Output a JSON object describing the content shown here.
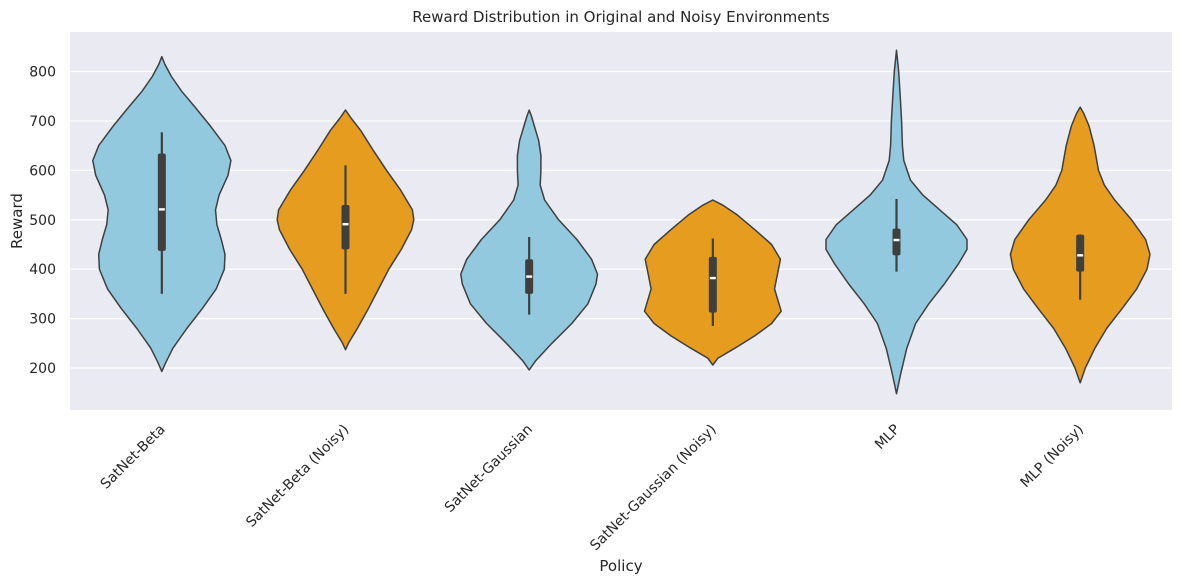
{
  "chart_data": {
    "type": "violin",
    "title": "Reward Distribution in Original and Noisy Environments",
    "xlabel": "Policy",
    "ylabel": "Reward",
    "ylim": [
      115,
      880
    ],
    "yticks": [
      200,
      300,
      400,
      500,
      600,
      700,
      800
    ],
    "grid": true,
    "colors": {
      "original": "#92c9df",
      "noisy": "#e59c1f",
      "background": "#eaeaf2",
      "outline": "#3f3f3f",
      "box": "#3f3f3f",
      "median": "#ffffff"
    },
    "categories": [
      "SatNet-Beta",
      "SatNet-Beta (Noisy)",
      "SatNet-Gaussian",
      "SatNet-Gaussian (Noisy)",
      "MLP",
      "MLP (Noisy)"
    ],
    "violins": [
      {
        "name": "SatNet-Beta",
        "variant": "original",
        "min": 193,
        "max": 830,
        "whisker": [
          350,
          677
        ],
        "q1": 437,
        "median": 521,
        "q3": 634,
        "profile": [
          [
            193,
            0.0
          ],
          [
            210,
            0.05
          ],
          [
            240,
            0.15
          ],
          [
            280,
            0.34
          ],
          [
            320,
            0.55
          ],
          [
            360,
            0.74
          ],
          [
            400,
            0.85
          ],
          [
            430,
            0.86
          ],
          [
            460,
            0.81
          ],
          [
            490,
            0.75
          ],
          [
            520,
            0.73
          ],
          [
            550,
            0.78
          ],
          [
            590,
            0.9
          ],
          [
            620,
            0.94
          ],
          [
            650,
            0.86
          ],
          [
            690,
            0.66
          ],
          [
            730,
            0.44
          ],
          [
            760,
            0.27
          ],
          [
            790,
            0.13
          ],
          [
            815,
            0.04
          ],
          [
            830,
            0.0
          ]
        ]
      },
      {
        "name": "SatNet-Beta (Noisy)",
        "variant": "noisy",
        "min": 237,
        "max": 722,
        "whisker": [
          350,
          610
        ],
        "q1": 440,
        "median": 491,
        "q3": 530,
        "profile": [
          [
            237,
            0.0
          ],
          [
            250,
            0.04
          ],
          [
            280,
            0.16
          ],
          [
            320,
            0.31
          ],
          [
            360,
            0.45
          ],
          [
            400,
            0.59
          ],
          [
            440,
            0.76
          ],
          [
            480,
            0.9
          ],
          [
            500,
            0.93
          ],
          [
            520,
            0.91
          ],
          [
            560,
            0.75
          ],
          [
            600,
            0.56
          ],
          [
            640,
            0.38
          ],
          [
            680,
            0.21
          ],
          [
            705,
            0.08
          ],
          [
            722,
            0.0
          ]
        ]
      },
      {
        "name": "SatNet-Gaussian",
        "variant": "original",
        "min": 196,
        "max": 722,
        "whisker": [
          308,
          465
        ],
        "q1": 350,
        "median": 385,
        "q3": 420,
        "profile": [
          [
            196,
            0.0
          ],
          [
            215,
            0.09
          ],
          [
            250,
            0.31
          ],
          [
            290,
            0.58
          ],
          [
            330,
            0.8
          ],
          [
            370,
            0.91
          ],
          [
            390,
            0.93
          ],
          [
            420,
            0.85
          ],
          [
            460,
            0.65
          ],
          [
            500,
            0.4
          ],
          [
            540,
            0.21
          ],
          [
            570,
            0.15
          ],
          [
            600,
            0.16
          ],
          [
            630,
            0.16
          ],
          [
            660,
            0.13
          ],
          [
            690,
            0.07
          ],
          [
            710,
            0.03
          ],
          [
            722,
            0.0
          ]
        ]
      },
      {
        "name": "SatNet-Gaussian (Noisy)",
        "variant": "noisy",
        "min": 206,
        "max": 540,
        "whisker": [
          285,
          462
        ],
        "q1": 312,
        "median": 382,
        "q3": 425,
        "profile": [
          [
            206,
            0.0
          ],
          [
            220,
            0.07
          ],
          [
            240,
            0.3
          ],
          [
            265,
            0.57
          ],
          [
            290,
            0.8
          ],
          [
            315,
            0.93
          ],
          [
            340,
            0.88
          ],
          [
            360,
            0.84
          ],
          [
            390,
            0.88
          ],
          [
            420,
            0.92
          ],
          [
            450,
            0.8
          ],
          [
            480,
            0.57
          ],
          [
            510,
            0.33
          ],
          [
            530,
            0.13
          ],
          [
            540,
            0.0
          ]
        ]
      },
      {
        "name": "MLP",
        "variant": "original",
        "min": 148,
        "max": 843,
        "whisker": [
          395,
          542
        ],
        "q1": 428,
        "median": 459,
        "q3": 482,
        "profile": [
          [
            148,
            0.0
          ],
          [
            190,
            0.06
          ],
          [
            240,
            0.14
          ],
          [
            290,
            0.26
          ],
          [
            330,
            0.44
          ],
          [
            370,
            0.65
          ],
          [
            410,
            0.84
          ],
          [
            440,
            0.96
          ],
          [
            460,
            0.96
          ],
          [
            490,
            0.82
          ],
          [
            520,
            0.59
          ],
          [
            550,
            0.36
          ],
          [
            580,
            0.19
          ],
          [
            620,
            0.1
          ],
          [
            650,
            0.08
          ],
          [
            700,
            0.07
          ],
          [
            750,
            0.05
          ],
          [
            800,
            0.03
          ],
          [
            843,
            0.0
          ]
        ]
      },
      {
        "name": "MLP (Noisy)",
        "variant": "noisy",
        "min": 170,
        "max": 728,
        "whisker": [
          338,
          470
        ],
        "q1": 395,
        "median": 428,
        "q3": 470,
        "profile": [
          [
            170,
            0.0
          ],
          [
            200,
            0.07
          ],
          [
            240,
            0.2
          ],
          [
            280,
            0.36
          ],
          [
            320,
            0.57
          ],
          [
            360,
            0.77
          ],
          [
            400,
            0.91
          ],
          [
            430,
            0.95
          ],
          [
            460,
            0.89
          ],
          [
            500,
            0.7
          ],
          [
            540,
            0.47
          ],
          [
            570,
            0.33
          ],
          [
            600,
            0.25
          ],
          [
            650,
            0.19
          ],
          [
            690,
            0.12
          ],
          [
            715,
            0.05
          ],
          [
            728,
            0.0
          ]
        ]
      }
    ]
  }
}
